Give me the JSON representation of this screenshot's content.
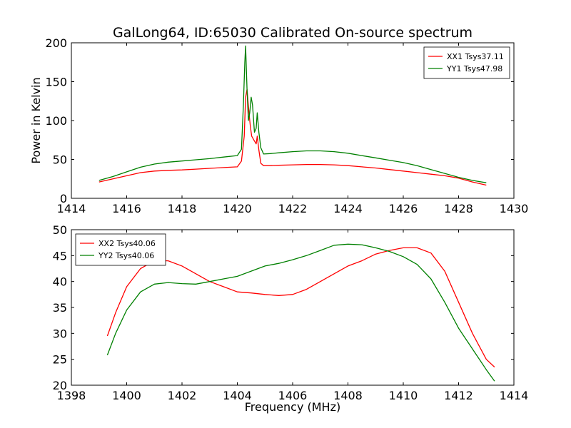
{
  "chart_data": [
    {
      "type": "line",
      "title": "GalLong64, ID:65030 Calibrated On-source spectrum",
      "xlabel": "",
      "ylabel": "Power in Kelvin",
      "xlim": [
        1414,
        1430
      ],
      "ylim": [
        0,
        200
      ],
      "xticks": [
        "1414",
        "1416",
        "1418",
        "1420",
        "1422",
        "1424",
        "1426",
        "1428",
        "1430"
      ],
      "yticks": [
        "0",
        "50",
        "100",
        "150",
        "200"
      ],
      "grid": false,
      "legend_position": "top-right",
      "series": [
        {
          "name": "XX1 Tsys37.11",
          "color": "#ff0000",
          "x": [
            1415.0,
            1415.5,
            1416.0,
            1416.5,
            1417.0,
            1417.5,
            1418.0,
            1418.5,
            1419.0,
            1419.5,
            1420.0,
            1420.15,
            1420.25,
            1420.3,
            1420.35,
            1420.42,
            1420.47,
            1420.52,
            1420.6,
            1420.68,
            1420.72,
            1420.78,
            1420.85,
            1420.95,
            1421.2,
            1421.5,
            1422.0,
            1422.5,
            1423.0,
            1423.5,
            1424.0,
            1424.5,
            1425.0,
            1425.5,
            1426.0,
            1426.5,
            1427.0,
            1427.5,
            1428.0,
            1428.5,
            1429.0
          ],
          "y": [
            21,
            25,
            29,
            33,
            35,
            36,
            36.5,
            37.5,
            38.5,
            39.5,
            40.5,
            48,
            80,
            130,
            140,
            110,
            93,
            80,
            75,
            70,
            80,
            62,
            45,
            42,
            42,
            42.5,
            43,
            43.5,
            43.5,
            43,
            42,
            40.5,
            39,
            37,
            35,
            33,
            31,
            29,
            26,
            21,
            17
          ]
        },
        {
          "name": "YY1 Tsys47.98",
          "color": "#008000",
          "x": [
            1415.0,
            1415.5,
            1416.0,
            1416.5,
            1417.0,
            1417.5,
            1418.0,
            1418.5,
            1419.0,
            1419.5,
            1420.0,
            1420.15,
            1420.22,
            1420.27,
            1420.3,
            1420.35,
            1420.4,
            1420.45,
            1420.5,
            1420.55,
            1420.62,
            1420.68,
            1420.72,
            1420.78,
            1420.85,
            1420.95,
            1421.2,
            1421.5,
            1422.0,
            1422.5,
            1423.0,
            1423.5,
            1424.0,
            1424.5,
            1425.0,
            1425.5,
            1426.0,
            1426.5,
            1427.0,
            1427.5,
            1428.0,
            1428.5,
            1429.0
          ],
          "y": [
            23,
            28,
            34,
            40,
            44,
            46.5,
            48,
            49.5,
            51,
            53,
            55,
            63,
            120,
            175,
            196,
            140,
            100,
            110,
            130,
            120,
            85,
            90,
            110,
            85,
            65,
            57,
            57.5,
            58.5,
            60,
            61,
            61,
            60,
            58,
            55,
            52,
            49,
            46,
            42,
            37,
            32,
            27,
            23,
            20
          ]
        }
      ]
    },
    {
      "type": "line",
      "xlabel": "Frequency (MHz)",
      "ylabel": "",
      "xlim": [
        1398,
        1414
      ],
      "ylim": [
        20,
        50
      ],
      "xticks": [
        "1398",
        "1400",
        "1402",
        "1404",
        "1406",
        "1408",
        "1410",
        "1412",
        "1414"
      ],
      "yticks": [
        "20",
        "25",
        "30",
        "35",
        "40",
        "45",
        "50"
      ],
      "grid": false,
      "legend_position": "top-left",
      "series": [
        {
          "name": "XX2 Tsys40.06",
          "color": "#ff0000",
          "x": [
            1399.3,
            1399.6,
            1400.0,
            1400.5,
            1401.0,
            1401.5,
            1402.0,
            1402.5,
            1403.0,
            1403.5,
            1404.0,
            1404.5,
            1405.0,
            1405.5,
            1406.0,
            1406.5,
            1407.0,
            1407.5,
            1408.0,
            1408.5,
            1409.0,
            1409.5,
            1410.0,
            1410.5,
            1411.0,
            1411.5,
            1412.0,
            1412.5,
            1413.0,
            1413.3
          ],
          "y": [
            29.5,
            34,
            39,
            42.5,
            44,
            44,
            43,
            41.5,
            40,
            39,
            38,
            37.8,
            37.5,
            37.3,
            37.5,
            38.5,
            40,
            41.5,
            43,
            44,
            45.3,
            46,
            46.5,
            46.5,
            45.5,
            42,
            36,
            30,
            25,
            23.5
          ]
        },
        {
          "name": "YY2 Tsys40.06",
          "color": "#008000",
          "x": [
            1399.3,
            1399.6,
            1400.0,
            1400.5,
            1401.0,
            1401.5,
            1402.0,
            1402.5,
            1403.0,
            1403.5,
            1404.0,
            1404.5,
            1405.0,
            1405.5,
            1406.0,
            1406.5,
            1407.0,
            1407.5,
            1408.0,
            1408.5,
            1409.0,
            1409.5,
            1410.0,
            1410.5,
            1411.0,
            1411.5,
            1412.0,
            1412.5,
            1413.0,
            1413.3
          ],
          "y": [
            25.8,
            30,
            34.5,
            38,
            39.5,
            39.8,
            39.6,
            39.5,
            40,
            40.5,
            41,
            42,
            43,
            43.5,
            44.2,
            45,
            46,
            47,
            47.2,
            47.1,
            46.5,
            45.8,
            44.8,
            43.3,
            40.5,
            36,
            31,
            27,
            23,
            20.8
          ]
        }
      ]
    }
  ]
}
